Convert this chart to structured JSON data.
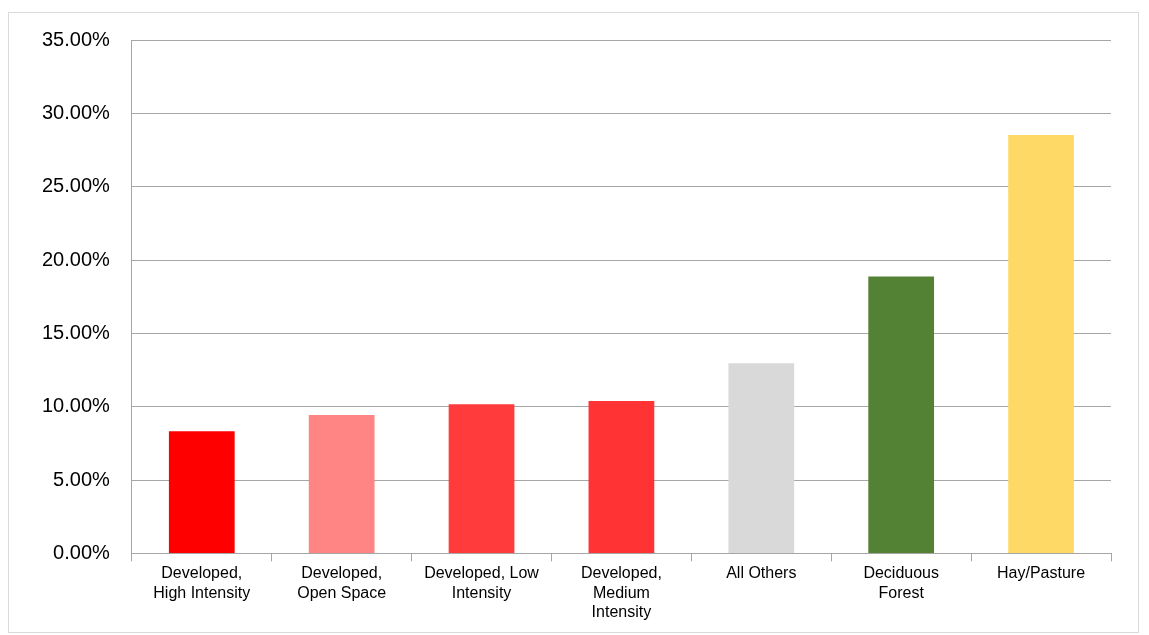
{
  "chart_data": {
    "type": "bar",
    "categories": [
      "Developed, High Intensity",
      "Developed, Open Space",
      "Developed, Low Intensity",
      "Developed, Medium Intensity",
      "All Others",
      "Deciduous Forest",
      "Hay/Pasture"
    ],
    "values": [
      8.33,
      9.43,
      10.17,
      10.39,
      12.97,
      18.87,
      28.52
    ],
    "colors": [
      "#ff0000",
      "#ff8585",
      "#ff3b3b",
      "#ff3333",
      "#d9d9d9",
      "#548235",
      "#ffd966"
    ],
    "ylim": [
      0,
      35
    ],
    "yticks": [
      {
        "value": 0,
        "label": "0.00%"
      },
      {
        "value": 5,
        "label": "5.00%"
      },
      {
        "value": 10,
        "label": "10.00%"
      },
      {
        "value": 15,
        "label": "15.00%"
      },
      {
        "value": 20,
        "label": "20.00%"
      },
      {
        "value": 25,
        "label": "25.00%"
      },
      {
        "value": 30,
        "label": "30.00%"
      },
      {
        "value": 35,
        "label": "35.00%"
      }
    ],
    "grid": "y",
    "legend": false
  }
}
